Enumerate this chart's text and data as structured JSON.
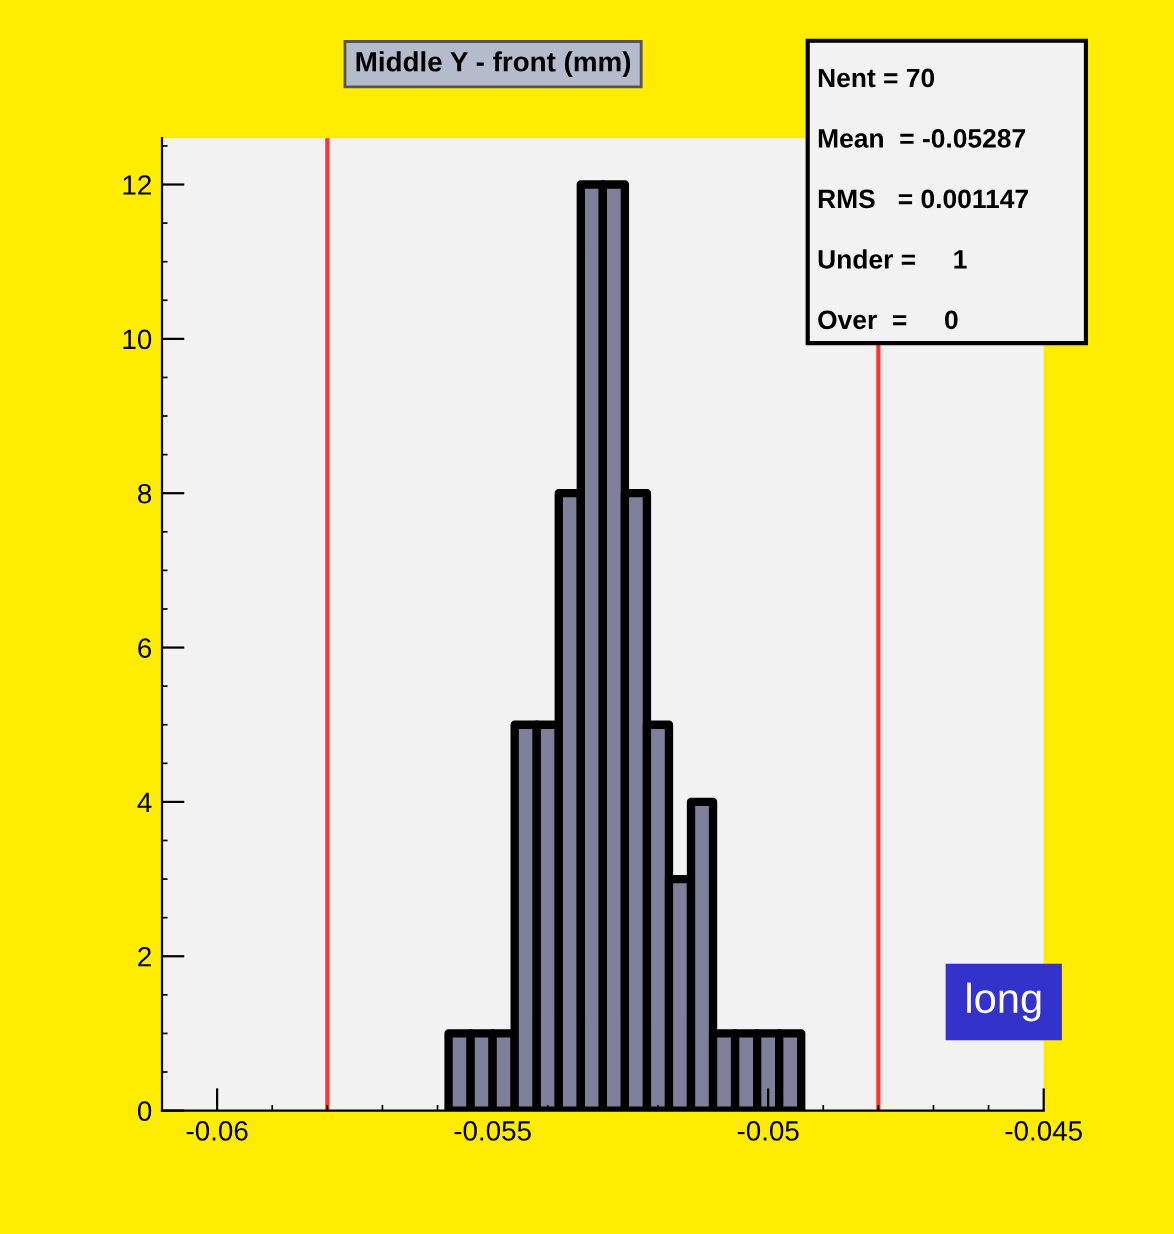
{
  "chart_data": {
    "type": "histogram",
    "title": "Middle Y - front (mm)",
    "bins": [
      -0.0558,
      -0.0554,
      -0.055,
      -0.0546,
      -0.0542,
      -0.0538,
      -0.0534,
      -0.053,
      -0.0526,
      -0.0522,
      -0.0518,
      -0.0514,
      -0.051,
      -0.0506,
      -0.0502,
      -0.0498,
      -0.0494
    ],
    "values": [
      1,
      1,
      1,
      5,
      5,
      8,
      12,
      12,
      8,
      5,
      3,
      4,
      1,
      1,
      1,
      1
    ],
    "color": "#7f7f9b",
    "xlim": [
      -0.061,
      -0.045
    ],
    "xticks": [
      -0.06,
      -0.055,
      -0.05,
      -0.045
    ],
    "ylim": [
      0,
      12.6
    ],
    "yticks": [
      0,
      2,
      4,
      6,
      8,
      10,
      12
    ],
    "ref_lines": [
      {
        "axis": "x",
        "value": -0.058,
        "color": "#ff3333"
      },
      {
        "axis": "x",
        "value": -0.048,
        "color": "#ff3333"
      }
    ],
    "annotations": [
      "Nent = 70",
      "Mean  = -0.05287",
      "RMS   = 0.001147",
      "Under =     1",
      "Over  =     0",
      "long"
    ],
    "grid": false,
    "legend": false
  }
}
